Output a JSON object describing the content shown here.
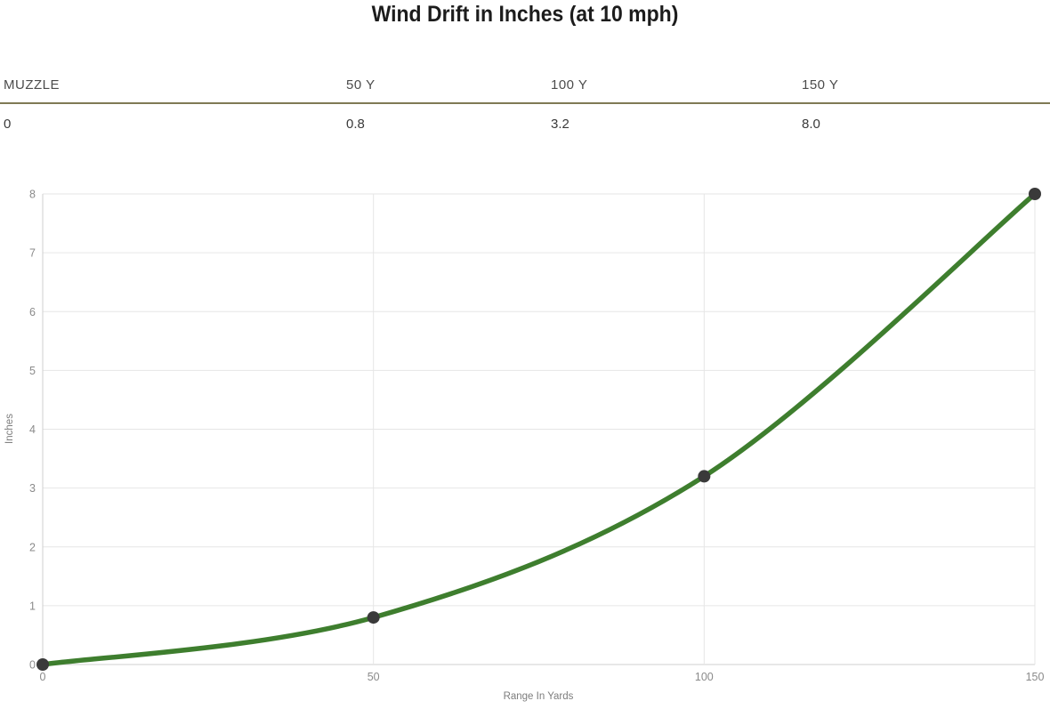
{
  "title": "Wind Drift in Inches (at 10 mph)",
  "table": {
    "columns": [
      {
        "header": "MUZZLE",
        "value": "0"
      },
      {
        "header": "50 Y",
        "value": "0.8"
      },
      {
        "header": "100 Y",
        "value": "3.2"
      },
      {
        "header": "150 Y",
        "value": "8.0"
      }
    ]
  },
  "chart_data": {
    "type": "line",
    "title": "Wind Drift in Inches (at 10 mph)",
    "x": [
      0,
      50,
      100,
      150
    ],
    "series": [
      {
        "name": "Wind Drift",
        "values": [
          0,
          0.8,
          3.2,
          8.0
        ]
      }
    ],
    "xlabel": "Range In Yards",
    "ylabel": "Inches",
    "x_ticks": [
      0,
      50,
      100,
      150
    ],
    "y_ticks": [
      0,
      1,
      2,
      3,
      4,
      5,
      6,
      7,
      8
    ],
    "xlim": [
      0,
      150
    ],
    "ylim": [
      0,
      8
    ],
    "grid": true,
    "legend": "none",
    "smooth": true
  },
  "colors": {
    "line": "#3e7e2e",
    "marker": "#3a3a3a",
    "grid": "#e6e6e6",
    "axis": "#cfcfcf",
    "divider": "#7f7a55",
    "tick_text": "#8a8a8a",
    "title_text": "#1c1c1c"
  }
}
